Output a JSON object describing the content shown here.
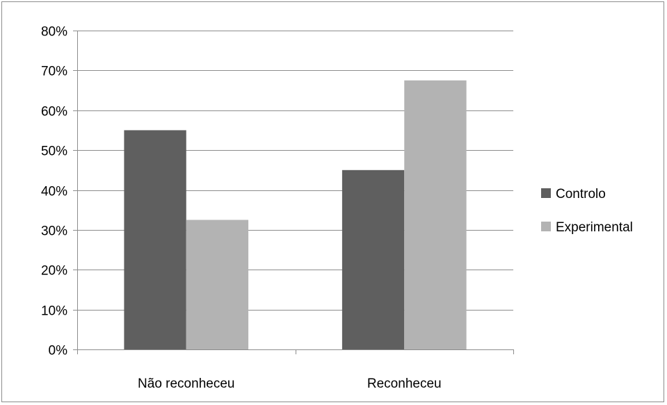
{
  "chart_data": {
    "type": "bar",
    "title": "",
    "xlabel": "",
    "ylabel": "",
    "categories": [
      "Não reconheceu",
      "Reconheceu"
    ],
    "y_ticks": [
      "0%",
      "10%",
      "20%",
      "30%",
      "40%",
      "50%",
      "60%",
      "70%",
      "80%"
    ],
    "ylim": [
      0,
      80
    ],
    "grid": true,
    "legend_position": "right",
    "series": [
      {
        "name": "Controlo",
        "values": [
          55,
          45
        ],
        "color": "#5f5f5f"
      },
      {
        "name": "Experimental",
        "values": [
          32.5,
          67.5
        ],
        "color": "#b3b3b3"
      }
    ]
  }
}
